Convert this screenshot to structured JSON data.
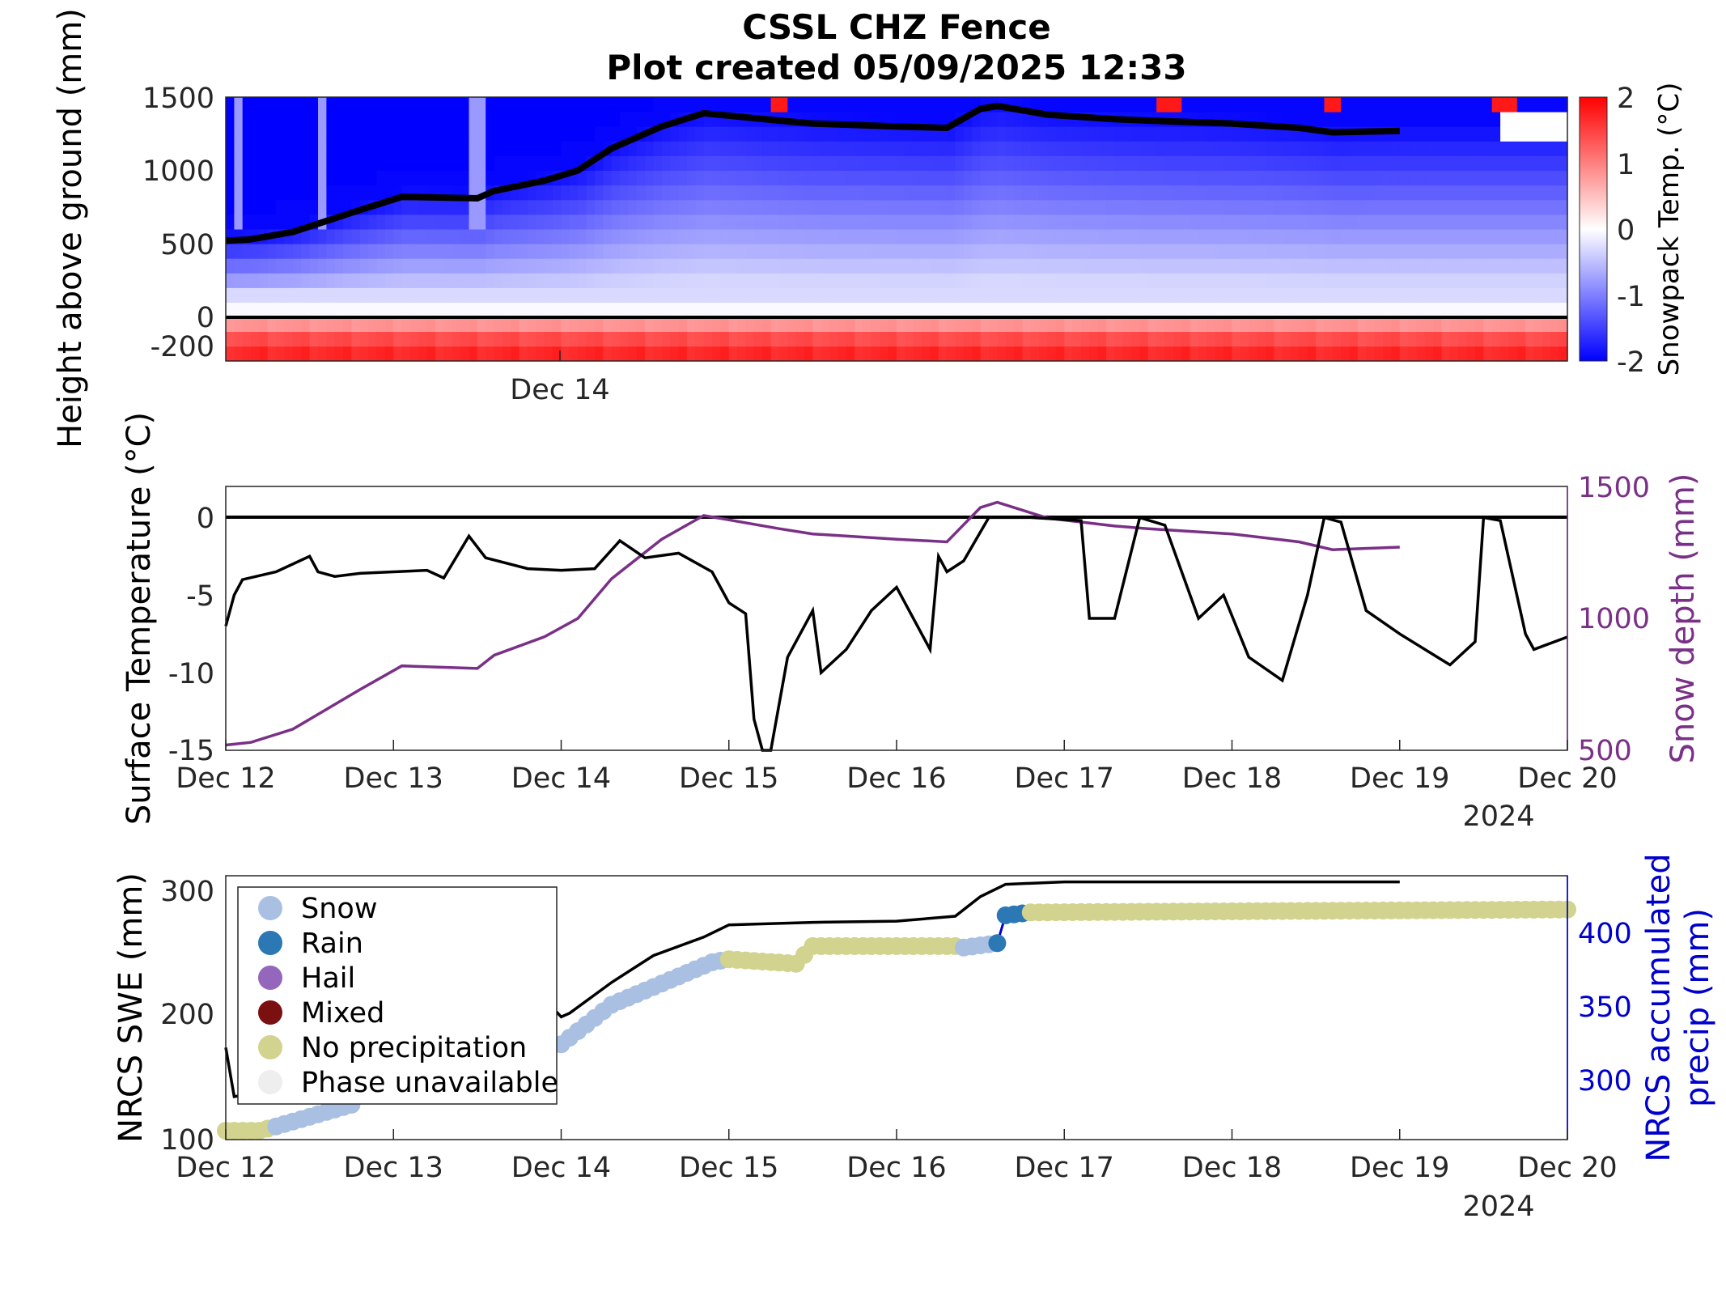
{
  "title": {
    "line1": "CSSL CHZ Fence",
    "line2": "Plot created 05/09/2025 12:33"
  },
  "panel1": {
    "ylabel": "Height above ground (mm)",
    "yticks": [
      "1500",
      "1000",
      "500",
      "0",
      "-200"
    ],
    "xtick": "Dec 14",
    "colorbar": {
      "label": "Snowpack Temp. (°C)",
      "ticks": [
        "2",
        "1",
        "0",
        "-1",
        "-2"
      ]
    }
  },
  "panel2": {
    "ylabel_left": "Surface Temperature (°C)",
    "ylabel_right": "Snow depth (mm)",
    "yticks_left": [
      "0",
      "-5",
      "-10",
      "-15"
    ],
    "yticks_right": [
      "1500",
      "1000",
      "500"
    ],
    "xticks": [
      "Dec 12",
      "Dec 13",
      "Dec 14",
      "Dec 15",
      "Dec 16",
      "Dec 17",
      "Dec 18",
      "Dec 19",
      "Dec 20"
    ],
    "year": "2024"
  },
  "panel3": {
    "ylabel_left": "NRCS SWE (mm)",
    "ylabel_right_1": "NRCS accumulated",
    "ylabel_right_2": "precip (mm)",
    "yticks_left": [
      "300",
      "200",
      "100"
    ],
    "yticks_right": [
      "400",
      "350",
      "300"
    ],
    "xticks": [
      "Dec 12",
      "Dec 13",
      "Dec 14",
      "Dec 15",
      "Dec 16",
      "Dec 17",
      "Dec 18",
      "Dec 19",
      "Dec 20"
    ],
    "year": "2024",
    "legend": [
      {
        "label": "Snow",
        "color": "#a9c0e2"
      },
      {
        "label": "Rain",
        "color": "#2b78b4"
      },
      {
        "label": "Hail",
        "color": "#9467bd"
      },
      {
        "label": "Mixed",
        "color": "#7b1010"
      },
      {
        "label": "No precipitation",
        "color": "#d2d38e"
      },
      {
        "label": "Phase unavailable",
        "color": "#eeeeee"
      }
    ]
  },
  "colors": {
    "snow_depth": "#7a3087",
    "precip_axis": "#0000cc",
    "swe_line": "#000000"
  },
  "chart_data": [
    {
      "type": "heatmap",
      "title": "",
      "xlabel": "",
      "ylabel": "Height above ground (mm)",
      "ylim": [
        -300,
        1500
      ],
      "color_range": [
        -2,
        2
      ],
      "colorbar_label": "Snowpack Temp. (°C)",
      "snow_depth_overlay": {
        "x_day": [
          12.0,
          12.15,
          12.4,
          12.8,
          13.05,
          13.5,
          13.6,
          13.9,
          14.1,
          14.3,
          14.6,
          14.85,
          15.3,
          15.5,
          16.0,
          16.3,
          16.5,
          16.6,
          16.9,
          17.3,
          17.5,
          18.0,
          18.4,
          18.6,
          19.0
        ],
        "depth_mm": [
          520,
          530,
          580,
          730,
          820,
          810,
          860,
          930,
          1000,
          1150,
          1300,
          1390,
          1340,
          1320,
          1300,
          1290,
          1420,
          1440,
          1380,
          1350,
          1340,
          1320,
          1290,
          1260,
          1270
        ]
      }
    },
    {
      "type": "line",
      "title": "",
      "xlabel": "",
      "ylabel": "Surface Temperature (°C)",
      "ylim": [
        -15,
        2
      ],
      "ylim_right": [
        500,
        1500
      ],
      "ylabel_right": "Snow depth (mm)",
      "series": [
        {
          "axis": "left",
          "x_day": [
            12.0,
            12.05,
            12.1,
            12.3,
            12.5,
            12.55,
            12.65,
            12.8,
            13.0,
            13.2,
            13.3,
            13.45,
            13.55,
            13.8,
            14.0,
            14.2,
            14.35,
            14.5,
            14.7,
            14.9,
            15.0,
            15.1,
            15.15,
            15.2,
            15.25,
            15.35,
            15.5,
            15.55,
            15.7,
            15.85,
            16.0,
            16.2,
            16.25,
            16.3,
            16.4,
            16.55,
            16.8,
            17.1,
            17.15,
            17.3,
            17.45,
            17.6,
            17.8,
            17.95,
            18.1,
            18.3,
            18.45,
            18.55,
            18.65,
            18.8,
            19.0,
            19.3,
            19.45,
            19.5,
            19.6,
            19.75,
            19.8,
            20.0
          ],
          "values": [
            -7,
            -5,
            -4,
            -3.5,
            -2.5,
            -3.5,
            -3.8,
            -3.6,
            -3.5,
            -3.4,
            -3.9,
            -1.2,
            -2.6,
            -3.3,
            -3.4,
            -3.3,
            -1.5,
            -2.6,
            -2.3,
            -3.5,
            -5.5,
            -6.2,
            -13,
            -16,
            -17,
            -9,
            -6,
            -10,
            -8.5,
            -6,
            -4.5,
            -8.5,
            -2.5,
            -3.5,
            -2.8,
            0,
            0,
            -0.2,
            -6.5,
            -6.5,
            0,
            -0.5,
            -6.5,
            -5,
            -9,
            -10.5,
            -5,
            0,
            -0.3,
            -6,
            -7.5,
            -9.5,
            -8,
            0,
            -0.2,
            -7.5,
            -8.5,
            -7.7
          ]
        },
        {
          "axis": "right",
          "x_day": [
            12.0,
            12.15,
            12.4,
            12.8,
            13.05,
            13.5,
            13.6,
            13.9,
            14.1,
            14.3,
            14.6,
            14.85,
            15.3,
            15.5,
            16.0,
            16.3,
            16.5,
            16.6,
            16.9,
            17.3,
            17.5,
            18.0,
            18.4,
            18.6,
            19.0
          ],
          "values": [
            520,
            530,
            580,
            730,
            820,
            810,
            860,
            930,
            1000,
            1150,
            1300,
            1390,
            1340,
            1320,
            1300,
            1290,
            1420,
            1440,
            1380,
            1350,
            1340,
            1320,
            1290,
            1260,
            1270
          ]
        }
      ]
    },
    {
      "type": "scatter",
      "title": "",
      "xlabel": "",
      "ylabel": "NRCS SWE (mm)",
      "ylim": [
        100,
        315
      ],
      "ylim_right": [
        260,
        440
      ],
      "ylabel_right": "NRCS accumulated precip (mm)",
      "legend_position": "top-left",
      "swe_line": {
        "x_day": [
          12.0,
          12.05,
          12.3,
          13.0,
          13.9,
          14.0,
          14.05,
          14.3,
          14.55,
          14.85,
          15.0,
          15.5,
          16.0,
          16.35,
          16.5,
          16.65,
          17.0,
          19.0
        ],
        "values": [
          175,
          135,
          140,
          160,
          215,
          200,
          203,
          228,
          250,
          265,
          275,
          277,
          278,
          282,
          298,
          308,
          310,
          310
        ]
      },
      "precip_phase_points": [
        {
          "x_day": 12.0,
          "precip_mm": 266,
          "phase": "No precipitation"
        },
        {
          "x_day": 12.2,
          "precip_mm": 266,
          "phase": "No precipitation"
        },
        {
          "x_day": 12.3,
          "precip_mm": 269,
          "phase": "Snow"
        },
        {
          "x_day": 14.0,
          "precip_mm": 325,
          "phase": "Snow"
        },
        {
          "x_day": 14.3,
          "precip_mm": 352,
          "phase": "Snow"
        },
        {
          "x_day": 14.9,
          "precip_mm": 381,
          "phase": "Snow"
        },
        {
          "x_day": 15.0,
          "precip_mm": 383,
          "phase": "No precipitation"
        },
        {
          "x_day": 15.4,
          "precip_mm": 380,
          "phase": "No precipitation"
        },
        {
          "x_day": 15.5,
          "precip_mm": 392,
          "phase": "No precipitation"
        },
        {
          "x_day": 16.35,
          "precip_mm": 392,
          "phase": "No precipitation"
        },
        {
          "x_day": 16.4,
          "precip_mm": 391,
          "phase": "Snow"
        },
        {
          "x_day": 16.6,
          "precip_mm": 394,
          "phase": "Rain"
        },
        {
          "x_day": 16.65,
          "precip_mm": 413,
          "phase": "Rain"
        },
        {
          "x_day": 16.8,
          "precip_mm": 415,
          "phase": "No precipitation"
        },
        {
          "x_day": 20.0,
          "precip_mm": 417,
          "phase": "No precipitation"
        }
      ]
    }
  ]
}
